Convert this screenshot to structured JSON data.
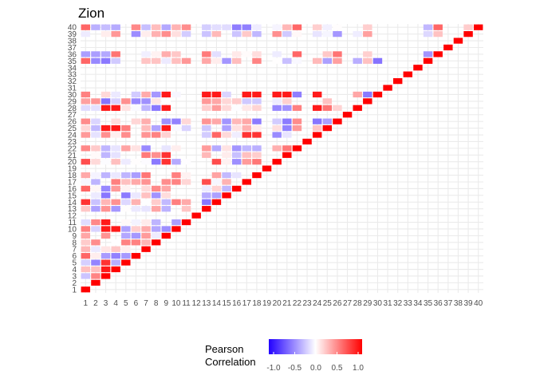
{
  "chart_data": {
    "type": "heatmap",
    "title": "Zion",
    "n": 40,
    "x_tick_labels": [
      "1",
      "2",
      "3",
      "4",
      "5",
      "6",
      "7",
      "8",
      "9",
      "10",
      "11",
      "12",
      "13",
      "14",
      "15",
      "16",
      "17",
      "18",
      "19",
      "20",
      "21",
      "22",
      "23",
      "24",
      "25",
      "26",
      "27",
      "28",
      "29",
      "30",
      "31",
      "32",
      "33",
      "34",
      "35",
      "36",
      "37",
      "38",
      "39",
      "40"
    ],
    "y_tick_labels": [
      "1",
      "2",
      "3",
      "4",
      "5",
      "6",
      "7",
      "8",
      "9",
      "10",
      "11",
      "12",
      "13",
      "14",
      "15",
      "16",
      "17",
      "18",
      "19",
      "20",
      "21",
      "22",
      "23",
      "24",
      "25",
      "26",
      "27",
      "28",
      "29",
      "30",
      "31",
      "32",
      "33",
      "34",
      "35",
      "36",
      "37",
      "38",
      "39",
      "40"
    ],
    "lower_triangle_values_note": "",
    "empty_variables": [
      12,
      19,
      23,
      27,
      31,
      32,
      33,
      34,
      37,
      38
    ],
    "sample_correlations": [
      [
        1,
        6,
        0.6
      ],
      [
        1,
        10,
        0.5
      ],
      [
        1,
        14,
        0.8
      ],
      [
        1,
        16,
        0.6
      ],
      [
        1,
        20,
        0.7
      ],
      [
        1,
        24,
        0.4
      ],
      [
        1,
        30,
        0.5
      ],
      [
        1,
        35,
        0.6
      ],
      [
        1,
        40,
        0.6
      ],
      [
        3,
        4,
        0.9
      ],
      [
        3,
        5,
        0.8
      ],
      [
        3,
        10,
        0.9
      ],
      [
        3,
        11,
        0.9
      ],
      [
        3,
        25,
        0.9
      ],
      [
        3,
        28,
        0.9
      ],
      [
        4,
        10,
        0.9
      ],
      [
        4,
        25,
        0.9
      ],
      [
        4,
        28,
        0.9
      ],
      [
        9,
        20,
        0.8
      ],
      [
        9,
        21,
        0.8
      ],
      [
        9,
        25,
        0.9
      ],
      [
        9,
        28,
        0.9
      ],
      [
        9,
        30,
        0.9
      ],
      [
        13,
        17,
        0.7
      ],
      [
        13,
        30,
        0.9
      ],
      [
        14,
        20,
        0.7
      ],
      [
        14,
        24,
        0.6
      ],
      [
        14,
        30,
        0.9
      ],
      [
        17,
        24,
        0.8
      ],
      [
        17,
        30,
        0.9
      ],
      [
        18,
        24,
        0.8
      ],
      [
        18,
        30,
        0.9
      ],
      [
        20,
        30,
        0.9
      ],
      [
        21,
        30,
        0.9
      ],
      [
        22,
        25,
        0.4
      ],
      [
        22,
        36,
        0.6
      ],
      [
        22,
        40,
        0.6
      ],
      [
        24,
        28,
        0.9
      ],
      [
        24,
        30,
        0.9
      ],
      [
        36,
        40,
        0.6
      ]
    ],
    "legend": {
      "title": "Pearson Correlation",
      "ticks": [
        "-1.0",
        "-0.5",
        "0.0",
        "0.5",
        "1.0"
      ],
      "colors": {
        "low": "#2200ff",
        "mid": "#ffffff",
        "high": "#ff0000"
      },
      "placement": "bottom"
    },
    "grid": true,
    "colors": {
      "diagonal": "#ff0000",
      "panel_grid": "#ebebeb"
    }
  }
}
